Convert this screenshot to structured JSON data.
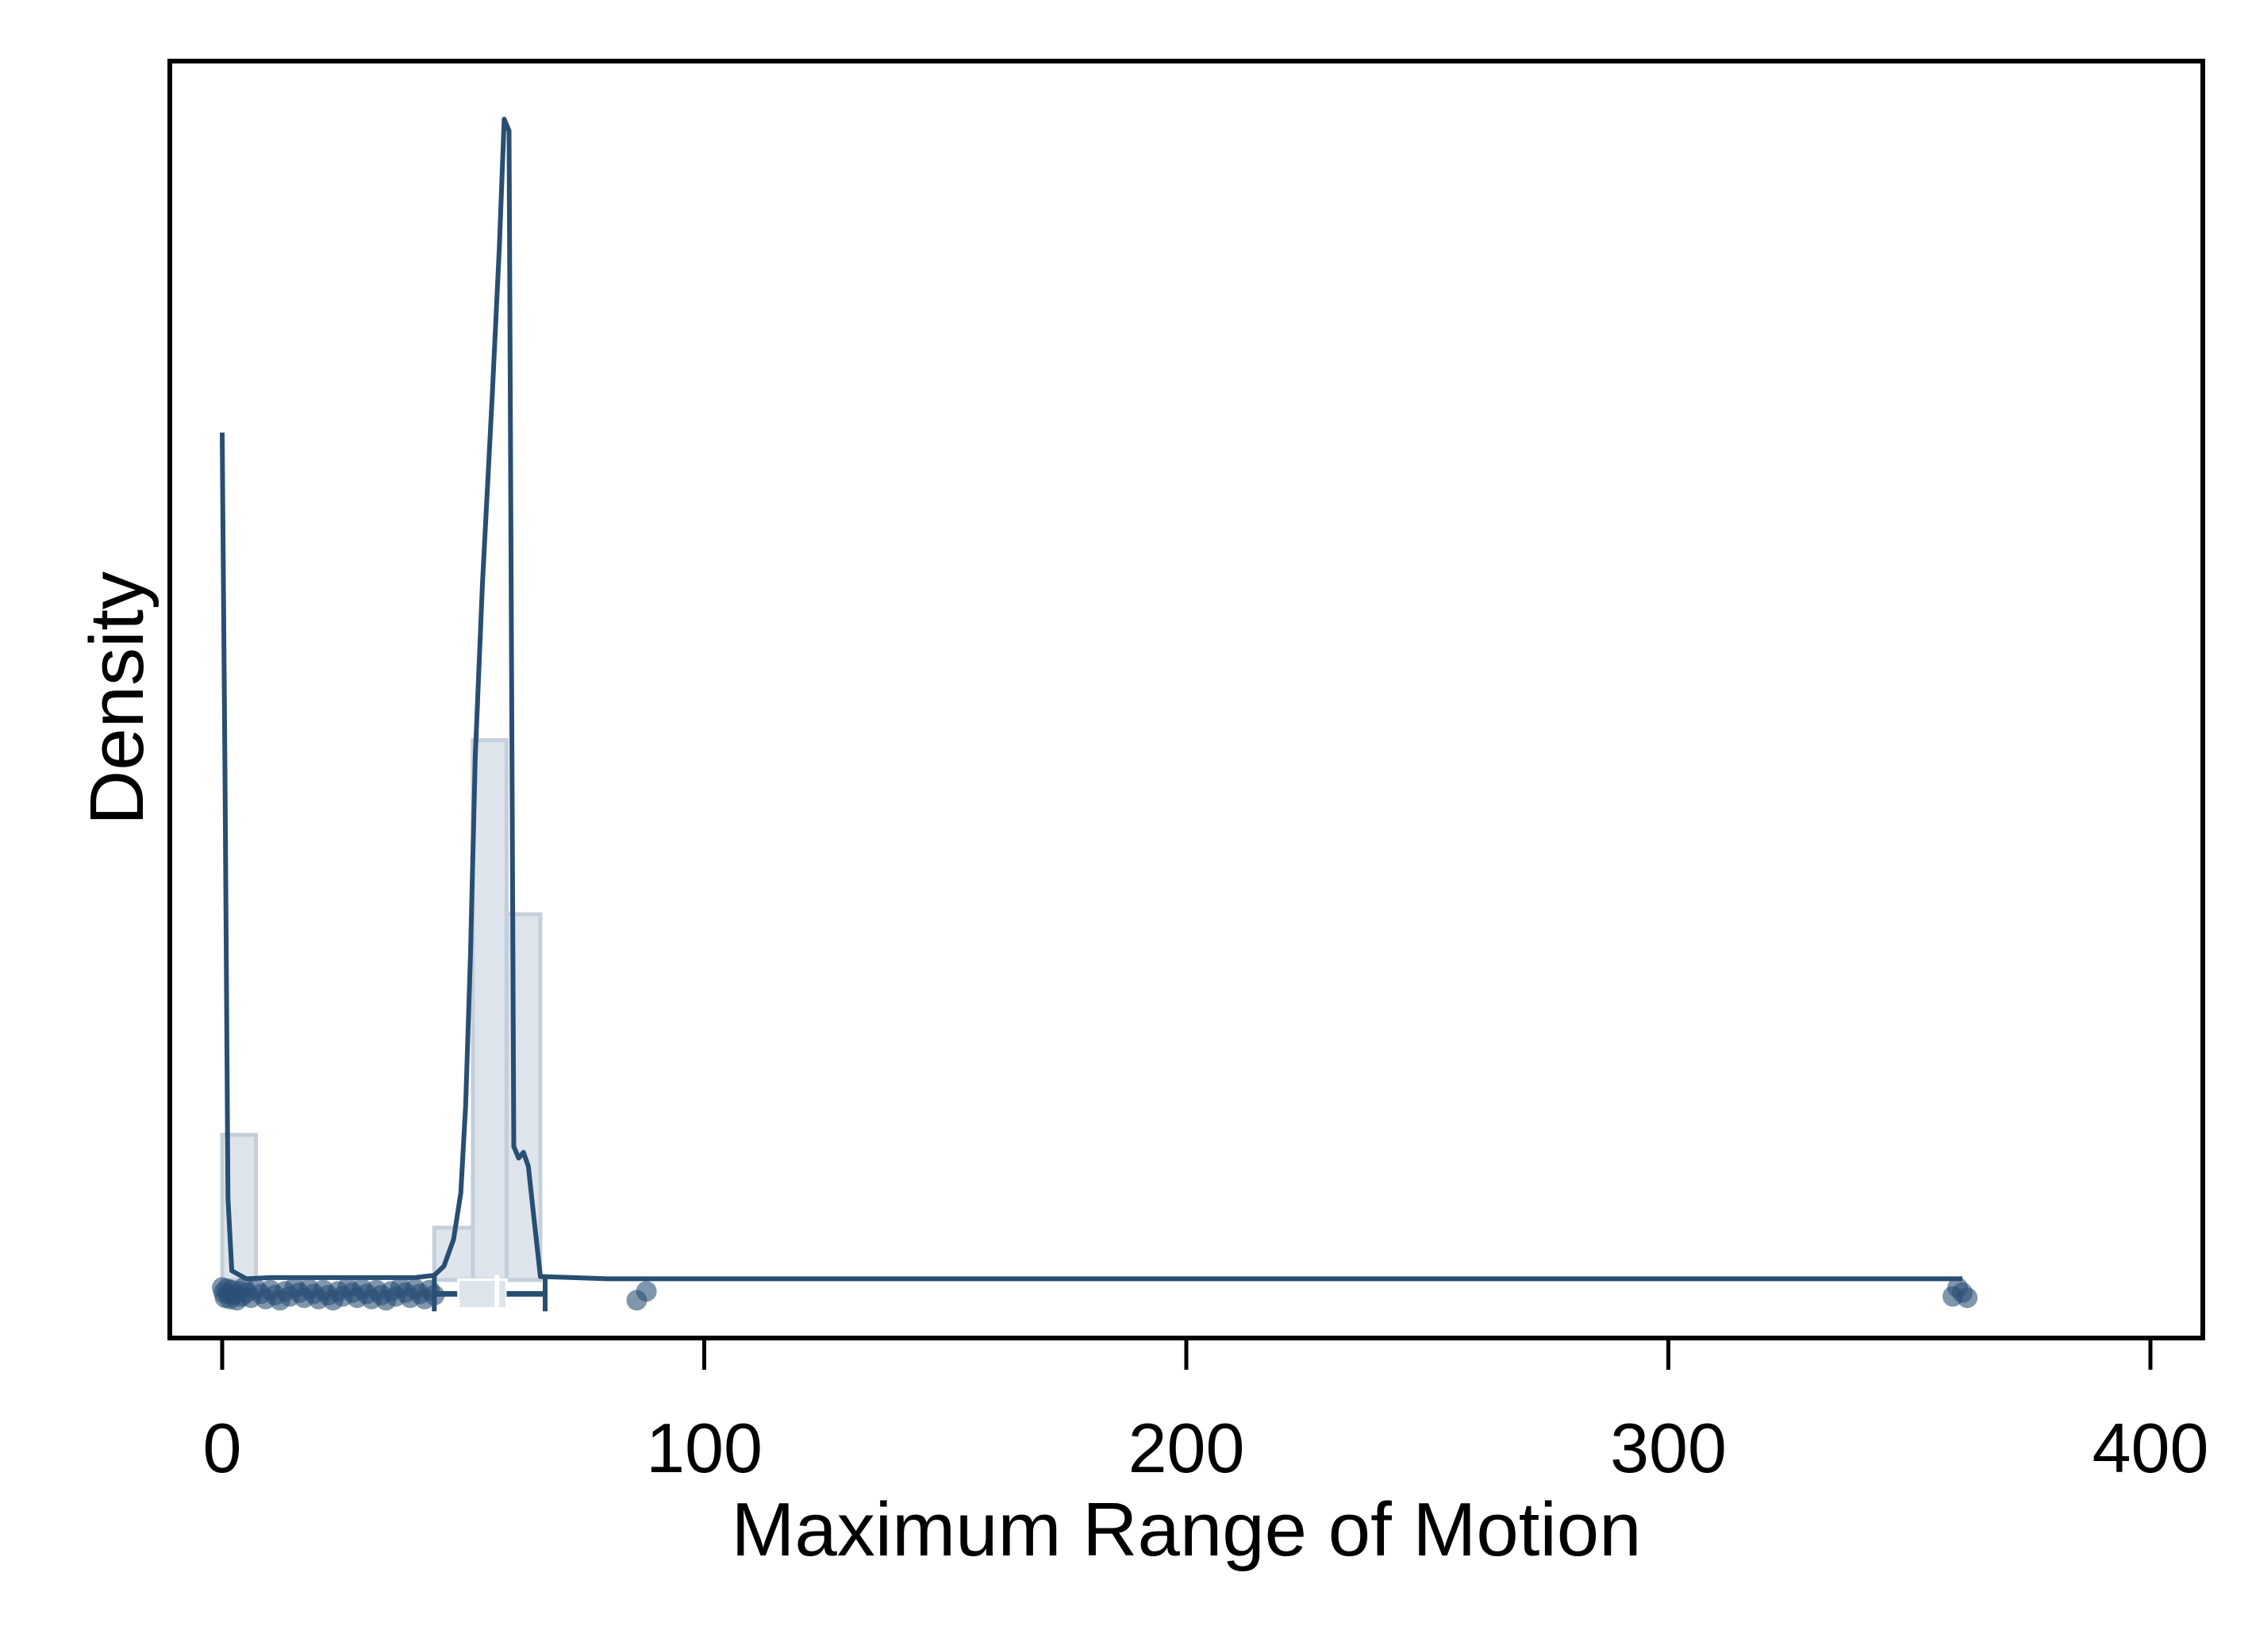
{
  "chart_data": {
    "type": "histogram",
    "xlabel": "Maximum Range of Motion",
    "ylabel": "Density",
    "xlim": [
      -10,
      412
    ],
    "ylim": [
      -0.005,
      0.105
    ],
    "x_ticks": [
      0,
      100,
      200,
      300,
      400
    ],
    "y_ticks_shown": false,
    "grid": false,
    "legend": "none",
    "colors": {
      "line": "#284e72",
      "points": "#2c5076",
      "bar_fill": "#dde4ec",
      "bar_stroke": "#c4cfdb",
      "box": "#dde4ec"
    },
    "histogram_bins": [
      {
        "x0": 0,
        "x1": 7,
        "density": 0.0125
      },
      {
        "x0": 7,
        "x1": 44,
        "density": 0.0
      },
      {
        "x0": 44,
        "x1": 52,
        "density": 0.0045
      },
      {
        "x0": 52,
        "x1": 59,
        "density": 0.0465
      },
      {
        "x0": 59,
        "x1": 66,
        "density": 0.0315
      }
    ],
    "density_curve": [
      [
        0,
        0.073
      ],
      [
        0.6,
        0.043
      ],
      [
        1.2,
        0.007
      ],
      [
        2,
        0.0008
      ],
      [
        5,
        0.0001
      ],
      [
        10,
        0.0002
      ],
      [
        20,
        0.0002
      ],
      [
        30,
        0.0002
      ],
      [
        40,
        0.0002
      ],
      [
        44,
        0.0004
      ],
      [
        46,
        0.0012
      ],
      [
        48,
        0.0035
      ],
      [
        49.5,
        0.0075
      ],
      [
        50.5,
        0.015
      ],
      [
        51.5,
        0.028
      ],
      [
        52.5,
        0.045
      ],
      [
        54,
        0.06
      ],
      [
        56,
        0.076
      ],
      [
        57.5,
        0.089
      ],
      [
        58.5,
        0.1
      ],
      [
        59.5,
        0.099
      ],
      [
        60.5,
        0.0115
      ],
      [
        61.5,
        0.0105
      ],
      [
        62.5,
        0.011
      ],
      [
        63.5,
        0.0098
      ],
      [
        64.5,
        0.006
      ],
      [
        66,
        0.0003
      ],
      [
        80,
        0.0001
      ],
      [
        200,
        0.0001
      ],
      [
        300,
        0.0001
      ],
      [
        361,
        0.0001
      ]
    ],
    "box_plot": {
      "whisker_low": 44,
      "q1": 49,
      "median": 57,
      "q3": 59,
      "whisker_high": 67,
      "y": -0.0012
    },
    "points": {
      "y": -0.0012,
      "x": [
        0,
        0.3,
        0.6,
        1,
        1.3,
        1.6,
        2,
        2.5,
        3,
        3.5,
        4,
        4.5,
        5,
        6,
        7,
        8,
        9,
        10,
        11,
        12,
        13,
        14,
        15,
        16,
        17,
        18,
        19,
        20,
        21,
        22,
        23,
        24,
        25,
        26,
        27,
        28,
        29,
        30,
        31,
        32,
        33,
        34,
        35,
        36,
        37,
        38,
        39,
        40,
        41,
        42,
        43,
        44,
        86,
        88,
        359,
        360,
        361,
        362
      ]
    }
  }
}
